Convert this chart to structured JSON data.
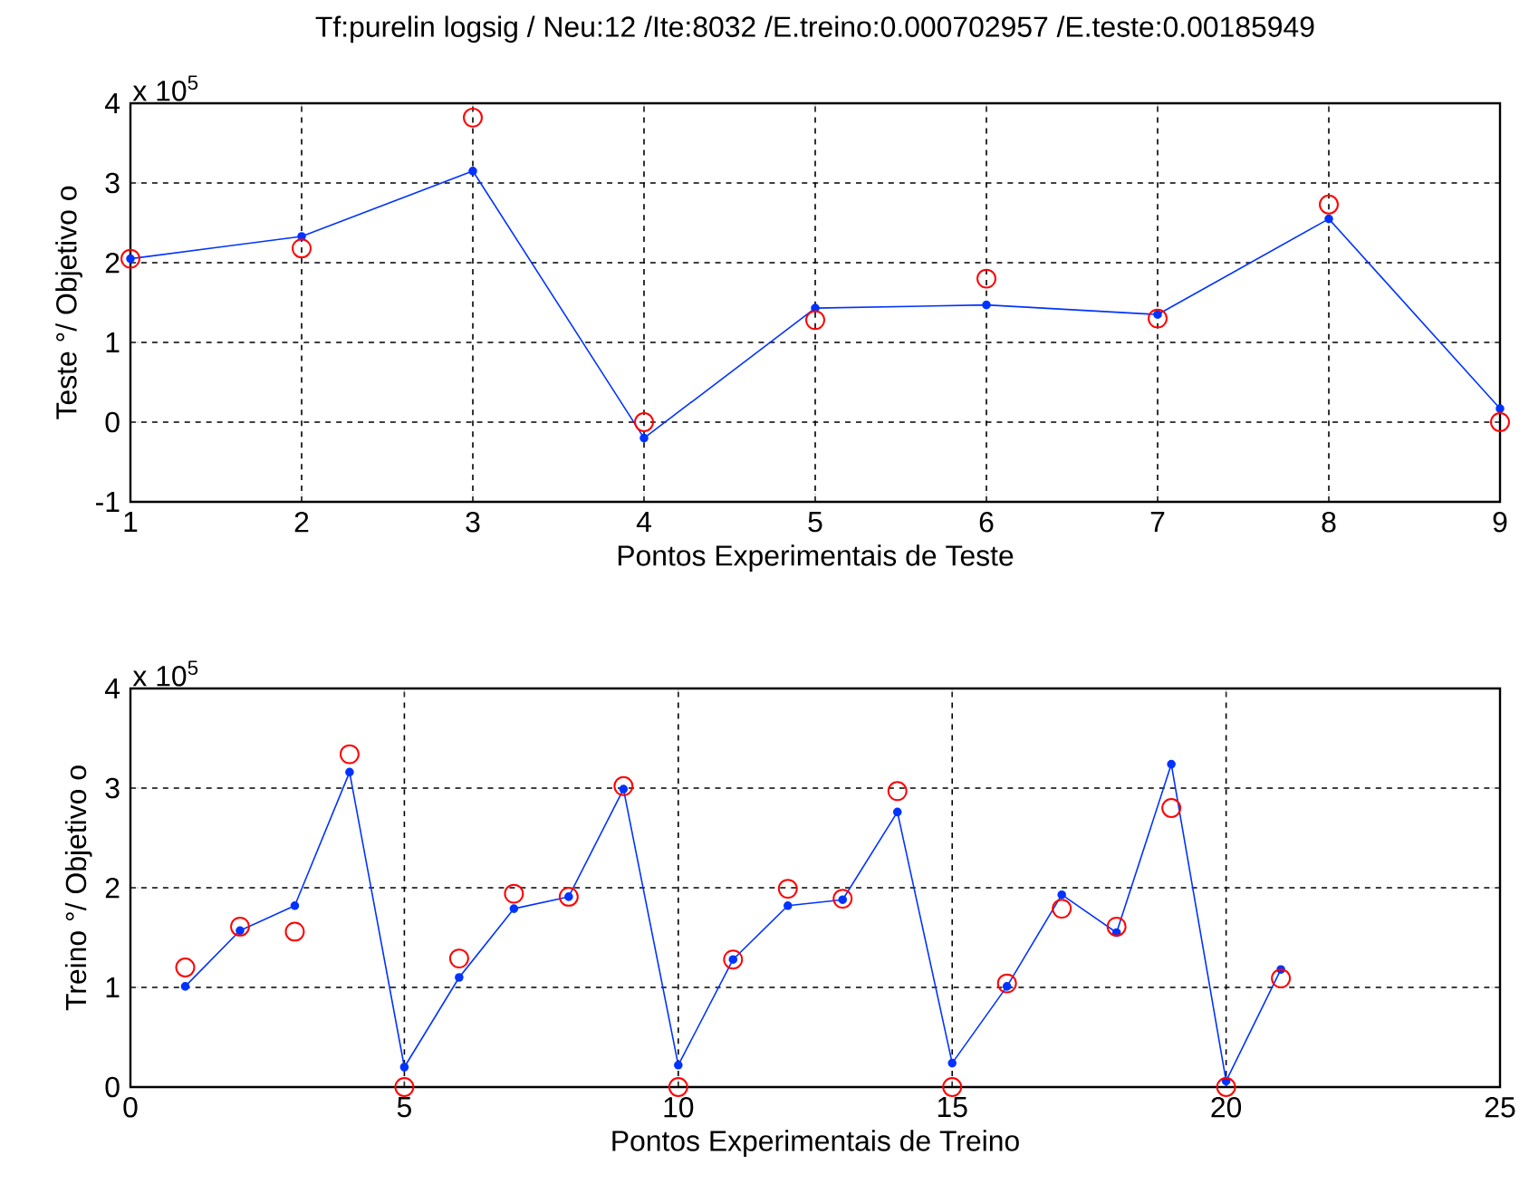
{
  "chart_data": [
    {
      "type": "line",
      "title": "Tf:purelin logsig / Neu:12 /Ite:8032 /E.treino:0.000702957 /E.teste:0.00185949",
      "xlabel": "Pontos Experimentais de Teste",
      "ylabel": "Teste °/ Objetivo o",
      "annotations": [
        "x 10$^{5}$"
      ],
      "x": [
        1,
        2,
        3,
        4,
        5,
        6,
        7,
        8,
        9
      ],
      "xlim": [
        1,
        9
      ],
      "xticks": [
        1,
        2,
        3,
        4,
        5,
        6,
        7,
        8,
        9
      ],
      "ylim": [
        -1,
        4
      ],
      "yticks": [
        -1,
        0,
        1,
        2,
        3,
        4
      ],
      "grid": true,
      "series": [
        {
          "color": "#0033ff",
          "marker": "circle",
          "values": [
            2.05,
            2.33,
            3.15,
            -0.2,
            1.43,
            1.47,
            1.35,
            2.55,
            0.17
          ]
        },
        {
          "type": "scatter",
          "color": "#ff0000",
          "marker": "circle",
          "values": [
            2.05,
            2.18,
            3.82,
            0.0,
            1.28,
            1.8,
            1.3,
            2.73,
            0.0
          ]
        }
      ]
    },
    {
      "type": "line",
      "xlabel": "Pontos Experimentais de Treino",
      "ylabel": "Treino °/ Objetivo o",
      "annotations": [
        "x 10$^{5}$"
      ],
      "x": [
        1,
        2,
        3,
        4,
        5,
        6,
        7,
        8,
        9,
        10,
        11,
        12,
        13,
        14,
        15,
        16,
        17,
        18,
        19,
        20,
        21
      ],
      "xlim": [
        0,
        25
      ],
      "xticks": [
        0,
        5,
        10,
        15,
        20,
        25
      ],
      "ylim": [
        0,
        4
      ],
      "yticks": [
        0,
        1,
        2,
        3,
        4
      ],
      "grid": true,
      "series": [
        {
          "color": "#0033ff",
          "marker": "circle",
          "values": [
            1.01,
            1.57,
            1.82,
            3.16,
            0.2,
            1.1,
            1.79,
            1.91,
            2.99,
            0.22,
            1.28,
            1.82,
            1.88,
            2.76,
            0.24,
            1.01,
            1.93,
            1.55,
            3.24,
            0.06,
            1.18
          ]
        },
        {
          "type": "scatter",
          "color": "#ff0000",
          "marker": "circle",
          "values": [
            1.2,
            1.61,
            1.56,
            3.34,
            0.0,
            1.29,
            1.94,
            1.91,
            3.02,
            0.0,
            1.28,
            1.99,
            1.89,
            2.97,
            0.0,
            1.04,
            1.79,
            1.61,
            2.8,
            0.0,
            1.09
          ]
        }
      ]
    }
  ]
}
